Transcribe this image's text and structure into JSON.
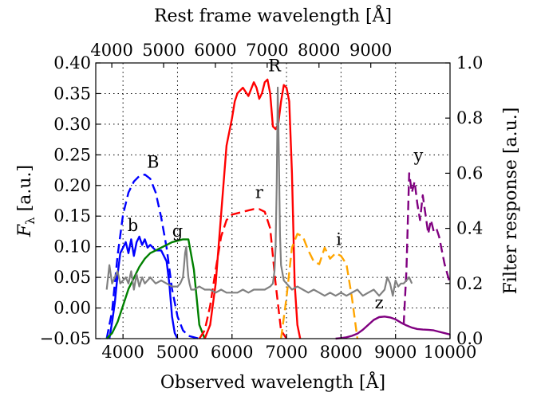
{
  "chart_data": {
    "type": "line",
    "xlabel": "Observed wavelength [Å]",
    "ylabel_left": "F_λ [a.u.]",
    "ylabel_right": "Filter response [a.u.]",
    "x2label": "Rest frame wavelength [Å]",
    "xlim": [
      3500,
      10000
    ],
    "ylim": [
      -0.05,
      0.4
    ],
    "y2lim": [
      0.0,
      1.0
    ],
    "x2lim": [
      3690,
      10530
    ],
    "x_ticks": [
      4000,
      5000,
      6000,
      7000,
      8000,
      9000,
      10000
    ],
    "y_ticks": [
      -0.05,
      0.0,
      0.05,
      0.1,
      0.15,
      0.2,
      0.25,
      0.3,
      0.35,
      0.4
    ],
    "y2_ticks": [
      0.0,
      0.2,
      0.4,
      0.6,
      0.8,
      1.0
    ],
    "x2_ticks": [
      4000,
      5000,
      6000,
      7000,
      8000,
      9000
    ],
    "grid": true,
    "spectrum": {
      "color": "#808080",
      "x": [
        3700,
        3750,
        3800,
        3850,
        3900,
        3950,
        4000,
        4050,
        4100,
        4150,
        4200,
        4250,
        4300,
        4350,
        4400,
        4450,
        4500,
        4600,
        4700,
        4800,
        4900,
        5000,
        5050,
        5100,
        5120,
        5140,
        5160,
        5180,
        5200,
        5220,
        5250,
        5300,
        5400,
        5500,
        5600,
        5700,
        5800,
        5900,
        6000,
        6100,
        6200,
        6300,
        6400,
        6500,
        6600,
        6700,
        6750,
        6780,
        6800,
        6820,
        6840,
        6860,
        6880,
        6900,
        6950,
        7000,
        7100,
        7200,
        7300,
        7400,
        7500,
        7600,
        7700,
        7800,
        7900,
        8000,
        8100,
        8200,
        8300,
        8400,
        8500,
        8600,
        8700,
        8800,
        8850,
        8900,
        8950,
        9000,
        9050,
        9100,
        9150,
        9200,
        9250,
        9300
      ],
      "y": [
        0.03,
        0.07,
        0.04,
        0.05,
        0.06,
        0.04,
        0.045,
        0.05,
        0.04,
        0.06,
        0.03,
        0.055,
        0.035,
        0.05,
        0.04,
        0.045,
        0.05,
        0.04,
        0.045,
        0.04,
        0.035,
        0.035,
        0.04,
        0.05,
        0.07,
        0.09,
        0.1,
        0.07,
        0.05,
        0.04,
        0.03,
        0.03,
        0.035,
        0.03,
        0.03,
        0.025,
        0.03,
        0.025,
        0.025,
        0.025,
        0.03,
        0.025,
        0.03,
        0.03,
        0.03,
        0.035,
        0.04,
        0.06,
        0.1,
        0.2,
        0.36,
        0.25,
        0.12,
        0.07,
        0.045,
        0.04,
        0.03,
        0.035,
        0.03,
        0.025,
        0.03,
        0.025,
        0.02,
        0.025,
        0.02,
        0.025,
        0.02,
        0.025,
        0.03,
        0.02,
        0.025,
        0.03,
        0.02,
        0.03,
        0.05,
        0.04,
        0.02,
        0.045,
        0.035,
        0.04,
        0.04,
        0.045,
        0.05,
        0.04
      ]
    },
    "filters": [
      {
        "label": "B",
        "color": "#0000ff",
        "style": "dashed",
        "x": [
          3700,
          3800,
          3900,
          4000,
          4100,
          4200,
          4300,
          4400,
          4500,
          4600,
          4700,
          4800,
          4900,
          5000,
          5100,
          5200,
          5300,
          5400
        ],
        "y": [
          0.0,
          0.1,
          0.3,
          0.45,
          0.53,
          0.57,
          0.59,
          0.595,
          0.58,
          0.53,
          0.44,
          0.33,
          0.18,
          0.08,
          0.03,
          0.01,
          0.005,
          0.0
        ]
      },
      {
        "label": "b",
        "color": "#0000ff",
        "style": "solid",
        "x": [
          3750,
          3800,
          3850,
          3900,
          3950,
          4000,
          4050,
          4100,
          4150,
          4200,
          4250,
          4300,
          4350,
          4400,
          4450,
          4500,
          4600,
          4700,
          4800,
          4850,
          4900,
          4950,
          5000
        ],
        "y": [
          0.0,
          0.06,
          0.13,
          0.23,
          0.31,
          0.33,
          0.35,
          0.31,
          0.36,
          0.3,
          0.35,
          0.37,
          0.34,
          0.36,
          0.33,
          0.34,
          0.32,
          0.32,
          0.28,
          0.2,
          0.08,
          0.02,
          0.0
        ]
      },
      {
        "label": "g",
        "color": "#008000",
        "style": "solid",
        "x": [
          3700,
          3800,
          3900,
          4000,
          4100,
          4200,
          4300,
          4400,
          4500,
          4600,
          4700,
          4800,
          4900,
          5000,
          5100,
          5200,
          5300,
          5400,
          5500
        ],
        "y": [
          0.0,
          0.02,
          0.06,
          0.12,
          0.18,
          0.22,
          0.26,
          0.29,
          0.31,
          0.32,
          0.33,
          0.34,
          0.35,
          0.355,
          0.36,
          0.36,
          0.25,
          0.05,
          0.0
        ]
      },
      {
        "label": "r",
        "color": "#ff0000",
        "style": "dashed",
        "x": [
          5400,
          5500,
          5600,
          5700,
          5800,
          5900,
          6000,
          6100,
          6200,
          6300,
          6400,
          6500,
          6600,
          6700,
          6800,
          6900,
          7000
        ],
        "y": [
          0.0,
          0.03,
          0.12,
          0.25,
          0.37,
          0.43,
          0.45,
          0.455,
          0.46,
          0.465,
          0.47,
          0.47,
          0.46,
          0.4,
          0.2,
          0.03,
          0.0
        ]
      },
      {
        "label": "R",
        "color": "#ff0000",
        "style": "solid",
        "x": [
          5500,
          5600,
          5700,
          5800,
          5900,
          6000,
          6050,
          6100,
          6200,
          6300,
          6400,
          6450,
          6500,
          6550,
          6600,
          6650,
          6700,
          6750,
          6800,
          6850,
          6900,
          6950,
          7000,
          7050,
          7100,
          7150,
          7200,
          7250
        ],
        "y": [
          0.0,
          0.05,
          0.2,
          0.45,
          0.7,
          0.8,
          0.86,
          0.89,
          0.91,
          0.88,
          0.93,
          0.91,
          0.87,
          0.89,
          0.93,
          0.94,
          0.89,
          0.77,
          0.76,
          0.78,
          0.86,
          0.92,
          0.91,
          0.86,
          0.6,
          0.2,
          0.05,
          0.0
        ]
      },
      {
        "label": "i",
        "color": "#ffa500",
        "style": "dashed",
        "x": [
          6900,
          7000,
          7100,
          7200,
          7300,
          7400,
          7500,
          7600,
          7700,
          7800,
          7900,
          8000,
          8100,
          8200,
          8300
        ],
        "y": [
          0.0,
          0.15,
          0.33,
          0.38,
          0.37,
          0.32,
          0.28,
          0.27,
          0.33,
          0.29,
          0.31,
          0.3,
          0.27,
          0.15,
          0.0
        ]
      },
      {
        "label": "z",
        "color": "#800080",
        "style": "solid",
        "x": [
          7900,
          8000,
          8100,
          8200,
          8300,
          8400,
          8500,
          8600,
          8700,
          8800,
          8900,
          9000,
          9100,
          9200,
          9300,
          9400,
          9500,
          9600,
          9700,
          9800,
          9900,
          10000
        ],
        "y": [
          0.0,
          0.002,
          0.005,
          0.01,
          0.018,
          0.032,
          0.05,
          0.068,
          0.078,
          0.08,
          0.077,
          0.07,
          0.058,
          0.048,
          0.04,
          0.035,
          0.033,
          0.032,
          0.03,
          0.025,
          0.02,
          0.015
        ]
      },
      {
        "label": "y",
        "color": "#800080",
        "style": "dashed",
        "x": [
          9150,
          9200,
          9250,
          9300,
          9350,
          9400,
          9450,
          9500,
          9550,
          9600,
          9650,
          9700,
          9750,
          9800,
          9900,
          10000
        ],
        "y": [
          0.05,
          0.25,
          0.6,
          0.53,
          0.57,
          0.49,
          0.43,
          0.52,
          0.45,
          0.38,
          0.43,
          0.39,
          0.4,
          0.37,
          0.27,
          0.2
        ]
      }
    ],
    "labels": {
      "B": {
        "x": 4550,
        "y": 0.62
      },
      "b": {
        "x": 4180,
        "y": 0.39
      },
      "g": {
        "x": 5000,
        "y": 0.37
      },
      "r": {
        "x": 6500,
        "y": 0.51
      },
      "R": {
        "x": 6780,
        "y": 0.97
      },
      "i": {
        "x": 7960,
        "y": 0.34
      },
      "z": {
        "x": 8700,
        "y": 0.11
      },
      "y": {
        "x": 9420,
        "y": 0.645
      }
    }
  }
}
